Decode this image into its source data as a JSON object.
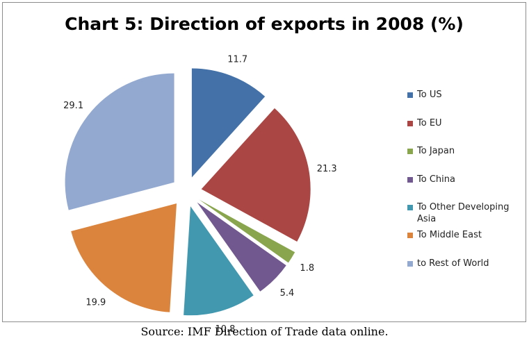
{
  "chart_data": {
    "type": "pie",
    "title": "Chart 5: Direction of exports in 2008 (%)",
    "source": "Source: IMF Direction of Trade data online.",
    "legend_position": "right",
    "slices": [
      {
        "label": "To US",
        "value": 11.7,
        "value_label": "11.7",
        "color": "#4472a8"
      },
      {
        "label": "To EU",
        "value": 21.3,
        "value_label": "21.3",
        "color": "#aa4643"
      },
      {
        "label": "To Japan",
        "value": 1.8,
        "value_label": "1.8",
        "color": "#89a54e"
      },
      {
        "label": "To China",
        "value": 5.4,
        "value_label": "5.4",
        "color": "#71588f"
      },
      {
        "label": "To Other Developing Asia",
        "value": 10.8,
        "value_label": "10.8",
        "color": "#4198af"
      },
      {
        "label": "To Middle East",
        "value": 19.9,
        "value_label": "19.9",
        "color": "#db843d"
      },
      {
        "label": "to Rest of World",
        "value": 29.1,
        "value_label": "29.1",
        "color": "#93a9cf"
      }
    ]
  }
}
